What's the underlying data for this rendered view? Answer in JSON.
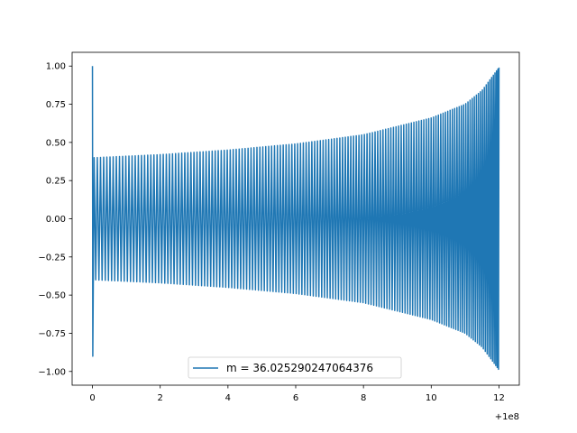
{
  "chart_data": {
    "type": "line",
    "title": "",
    "xlabel": "",
    "ylabel": "",
    "xlim": [
      -0.6,
      12.6
    ],
    "ylim": [
      -1.09,
      1.09
    ],
    "x_ticks": [
      0,
      2,
      4,
      6,
      8,
      10,
      12
    ],
    "x_tick_labels": [
      "0",
      "2",
      "4",
      "6",
      "8",
      "10",
      "12"
    ],
    "y_ticks": [
      1.0,
      0.75,
      0.5,
      0.25,
      0.0,
      -0.25,
      -0.5,
      -0.75,
      -1.0
    ],
    "y_tick_labels": [
      "1.00",
      "0.75",
      "0.50",
      "0.25",
      "0.00",
      "−0.25",
      "−0.50",
      "−0.75",
      "−1.00"
    ],
    "x_offset_label": "+1e8",
    "grid": false,
    "legend_position": "lower center",
    "series": [
      {
        "name": "m = 36.025290247064376",
        "color": "#1f77b4",
        "x_start": 0,
        "x_end": 12,
        "initial_value": 1.0,
        "initial_min": -0.9,
        "envelope": [
          {
            "x": 0.05,
            "y": 0.4
          },
          {
            "x": 2,
            "y": 0.42
          },
          {
            "x": 4,
            "y": 0.45
          },
          {
            "x": 6,
            "y": 0.49
          },
          {
            "x": 8,
            "y": 0.55
          },
          {
            "x": 10,
            "y": 0.66
          },
          {
            "x": 11,
            "y": 0.75
          },
          {
            "x": 11.5,
            "y": 0.84
          },
          {
            "x": 12,
            "y": 0.99
          }
        ],
        "cycles": 150
      }
    ]
  }
}
